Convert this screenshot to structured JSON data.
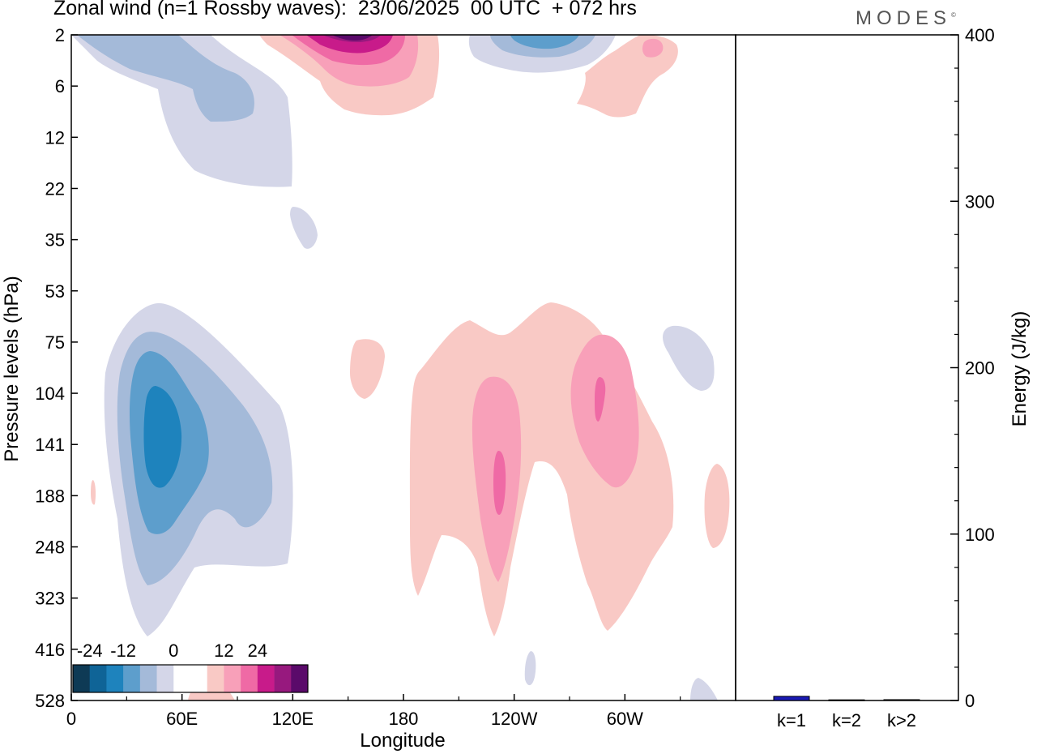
{
  "title": "Zonal wind (n=1 Rossby waves):  23/06/2025  00 UTC  + 072 hrs",
  "brand": "MODES",
  "brand_mark": "©",
  "colors": {
    "neg_levels": [
      "#0e3a55",
      "#0f6497",
      "#1e83bd",
      "#5d9ecc",
      "#a4bad9",
      "#d4d6e8"
    ],
    "pos_levels": [
      "#f9c9c5",
      "#f8a0b9",
      "#ef6aa5",
      "#c81b8a",
      "#97197e",
      "#5a0a6a"
    ],
    "zero": "#ffffff",
    "bar": "#1a1ab5"
  },
  "chart_data": [
    {
      "type": "heatmap",
      "title": "Zonal wind (n=1 Rossby waves):  23/06/2025  00 UTC  + 072 hrs",
      "xlabel": "Longitude",
      "ylabel": "Pressure levels (hPa)",
      "x_ticks": [
        "0",
        "60E",
        "120E",
        "180",
        "120W",
        "60W"
      ],
      "y_ticks": [
        "2",
        "6",
        "12",
        "22",
        "35",
        "53",
        "75",
        "104",
        "141",
        "188",
        "248",
        "323",
        "416",
        "528"
      ],
      "colorbar": {
        "labels": [
          "-24",
          "-12",
          "0",
          "12",
          "24"
        ],
        "levels": [
          -30,
          -24,
          -18,
          -12,
          -6,
          -3,
          3,
          6,
          12,
          18,
          24,
          30
        ]
      },
      "features": [
        {
          "lon": 48,
          "level": "141",
          "sign": "negative",
          "peak": -21
        },
        {
          "lon": 115,
          "level": "2",
          "sign": "negative",
          "peak": -9
        },
        {
          "lon": 150,
          "level": "2",
          "sign": "positive",
          "peak": 30
        },
        {
          "lon": 240,
          "level": "2",
          "sign": "negative",
          "peak": -15
        },
        {
          "lon": 315,
          "level": "2",
          "sign": "positive",
          "peak": 12
        },
        {
          "lon": 233,
          "level": "188",
          "sign": "positive",
          "peak": 15
        },
        {
          "lon": 288,
          "level": "104",
          "sign": "positive",
          "peak": 15
        },
        {
          "lon": 320,
          "level": "75",
          "sign": "negative",
          "peak": -4
        }
      ]
    },
    {
      "type": "bar",
      "ylabel": "Energy (J/kg)",
      "categories": [
        "k=1",
        "k=2",
        "k>2"
      ],
      "values": [
        2.5,
        0.4,
        0.5
      ],
      "ylim": [
        0,
        400
      ],
      "y_ticks": [
        "0",
        "100",
        "200",
        "300",
        "400"
      ]
    }
  ]
}
